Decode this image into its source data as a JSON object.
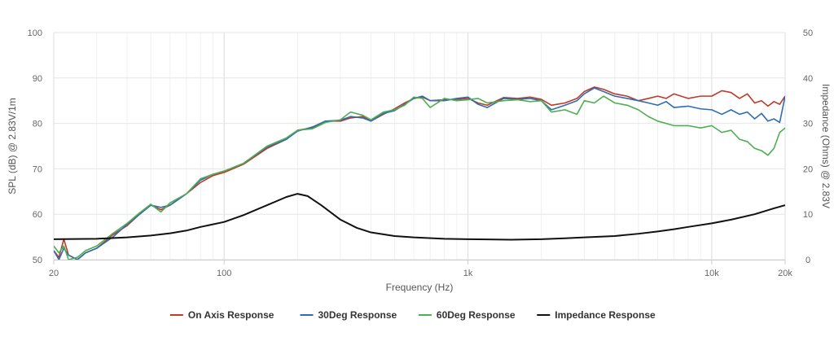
{
  "chart_data": {
    "type": "line",
    "xlabel": "Frequency (Hz)",
    "ylabel": "SPL (dB) @ 2.83V/1m",
    "y2label": "Impedance (Ohms) @ 2.83V",
    "x_scale": "log",
    "xlim": [
      20,
      20000
    ],
    "ylim": [
      50,
      100
    ],
    "y2lim": [
      0,
      50
    ],
    "x_ticks": [
      {
        "value": 20,
        "label": "20"
      },
      {
        "value": 100,
        "label": "100"
      },
      {
        "value": 1000,
        "label": "1k"
      },
      {
        "value": 10000,
        "label": "10k"
      },
      {
        "value": 20000,
        "label": "20k"
      }
    ],
    "y_ticks": [
      {
        "value": 50,
        "label": "50"
      },
      {
        "value": 60,
        "label": "60"
      },
      {
        "value": 70,
        "label": "70"
      },
      {
        "value": 80,
        "label": "80"
      },
      {
        "value": 90,
        "label": "90"
      },
      {
        "value": 100,
        "label": "100"
      }
    ],
    "y2_ticks": [
      {
        "value": 0,
        "label": "0"
      },
      {
        "value": 10,
        "label": "10"
      },
      {
        "value": 20,
        "label": "20"
      },
      {
        "value": 30,
        "label": "30"
      },
      {
        "value": 40,
        "label": "40"
      },
      {
        "value": 50,
        "label": "50"
      }
    ],
    "grid": true,
    "legend_position": "bottom",
    "series": [
      {
        "name": "On Axis Response",
        "color": "#c0392b",
        "axis": "left",
        "points": [
          [
            20,
            52
          ],
          [
            21,
            50.5
          ],
          [
            22,
            54.5
          ],
          [
            23,
            51
          ],
          [
            25,
            50
          ],
          [
            27,
            51.5
          ],
          [
            30,
            52.5
          ],
          [
            35,
            55.5
          ],
          [
            40,
            57.5
          ],
          [
            45,
            60
          ],
          [
            50,
            62
          ],
          [
            55,
            61
          ],
          [
            60,
            62
          ],
          [
            70,
            64.5
          ],
          [
            80,
            67
          ],
          [
            90,
            68.5
          ],
          [
            100,
            69.2
          ],
          [
            120,
            71
          ],
          [
            150,
            74.5
          ],
          [
            180,
            76.5
          ],
          [
            200,
            78.5
          ],
          [
            230,
            79
          ],
          [
            260,
            80.5
          ],
          [
            300,
            80.5
          ],
          [
            330,
            81.2
          ],
          [
            370,
            81.5
          ],
          [
            400,
            80.5
          ],
          [
            450,
            82
          ],
          [
            500,
            83.2
          ],
          [
            550,
            84.5
          ],
          [
            600,
            85.5
          ],
          [
            650,
            85.8
          ],
          [
            700,
            85
          ],
          [
            800,
            85.2
          ],
          [
            900,
            85.3
          ],
          [
            1000,
            85.5
          ],
          [
            1100,
            84.5
          ],
          [
            1200,
            84
          ],
          [
            1400,
            85.7
          ],
          [
            1600,
            85.5
          ],
          [
            1800,
            85.8
          ],
          [
            2000,
            85.3
          ],
          [
            2200,
            84
          ],
          [
            2500,
            84.5
          ],
          [
            2800,
            85.5
          ],
          [
            3000,
            87
          ],
          [
            3300,
            88
          ],
          [
            3600,
            87.5
          ],
          [
            4000,
            86.5
          ],
          [
            4500,
            86
          ],
          [
            5000,
            85
          ],
          [
            5500,
            85.5
          ],
          [
            6000,
            86
          ],
          [
            6500,
            85.5
          ],
          [
            7000,
            86.5
          ],
          [
            8000,
            85.5
          ],
          [
            9000,
            86
          ],
          [
            10000,
            86
          ],
          [
            11000,
            87.2
          ],
          [
            12000,
            86.8
          ],
          [
            13000,
            85.5
          ],
          [
            14000,
            86.5
          ],
          [
            15000,
            84.5
          ],
          [
            16000,
            85
          ],
          [
            17000,
            83.8
          ],
          [
            18000,
            84.8
          ],
          [
            19000,
            84.2
          ],
          [
            20000,
            86
          ]
        ]
      },
      {
        "name": "30Deg Response",
        "color": "#2e6db4",
        "axis": "left",
        "points": [
          [
            20,
            52
          ],
          [
            21,
            50
          ],
          [
            22,
            52.5
          ],
          [
            23,
            51
          ],
          [
            25,
            50
          ],
          [
            27,
            51.5
          ],
          [
            30,
            52.5
          ],
          [
            35,
            55
          ],
          [
            40,
            57.8
          ],
          [
            45,
            60
          ],
          [
            50,
            62
          ],
          [
            55,
            61.5
          ],
          [
            60,
            62
          ],
          [
            70,
            64.5
          ],
          [
            80,
            67.5
          ],
          [
            90,
            68.8
          ],
          [
            100,
            69.5
          ],
          [
            120,
            71.2
          ],
          [
            150,
            74.8
          ],
          [
            180,
            76.5
          ],
          [
            200,
            78.3
          ],
          [
            230,
            79.2
          ],
          [
            260,
            80.5
          ],
          [
            300,
            80.7
          ],
          [
            330,
            81.5
          ],
          [
            370,
            81.2
          ],
          [
            400,
            80.5
          ],
          [
            450,
            82.2
          ],
          [
            500,
            82.8
          ],
          [
            550,
            84.2
          ],
          [
            600,
            85.5
          ],
          [
            650,
            86
          ],
          [
            700,
            85
          ],
          [
            800,
            85
          ],
          [
            900,
            85.5
          ],
          [
            1000,
            85.8
          ],
          [
            1100,
            84.2
          ],
          [
            1200,
            83.5
          ],
          [
            1400,
            85.5
          ],
          [
            1600,
            85.3
          ],
          [
            1800,
            85.5
          ],
          [
            2000,
            85
          ],
          [
            2200,
            83
          ],
          [
            2500,
            84
          ],
          [
            2800,
            85
          ],
          [
            3000,
            86.5
          ],
          [
            3300,
            87.8
          ],
          [
            3600,
            87
          ],
          [
            4000,
            86
          ],
          [
            4500,
            85.5
          ],
          [
            5000,
            85
          ],
          [
            5500,
            84.5
          ],
          [
            6000,
            84
          ],
          [
            6500,
            84.8
          ],
          [
            7000,
            83.5
          ],
          [
            8000,
            83.8
          ],
          [
            9000,
            83.2
          ],
          [
            10000,
            83
          ],
          [
            11000,
            82
          ],
          [
            12000,
            83
          ],
          [
            13000,
            82
          ],
          [
            14000,
            82.5
          ],
          [
            15000,
            81
          ],
          [
            16000,
            82.2
          ],
          [
            17000,
            80.5
          ],
          [
            18000,
            81
          ],
          [
            19000,
            80.2
          ],
          [
            20000,
            86
          ]
        ]
      },
      {
        "name": "60Deg Response",
        "color": "#4caf50",
        "axis": "left",
        "points": [
          [
            20,
            53
          ],
          [
            21,
            51.5
          ],
          [
            22,
            53
          ],
          [
            23,
            50
          ],
          [
            25,
            50.5
          ],
          [
            27,
            52
          ],
          [
            30,
            53
          ],
          [
            35,
            55.8
          ],
          [
            40,
            58
          ],
          [
            45,
            60.3
          ],
          [
            50,
            62.2
          ],
          [
            55,
            60.5
          ],
          [
            60,
            62.5
          ],
          [
            70,
            64.5
          ],
          [
            80,
            67.8
          ],
          [
            90,
            68.8
          ],
          [
            100,
            69.5
          ],
          [
            120,
            71.2
          ],
          [
            150,
            75
          ],
          [
            180,
            76.8
          ],
          [
            200,
            78.5
          ],
          [
            230,
            78.8
          ],
          [
            260,
            80.2
          ],
          [
            300,
            80.8
          ],
          [
            330,
            82.5
          ],
          [
            370,
            81.8
          ],
          [
            400,
            80.8
          ],
          [
            450,
            82.5
          ],
          [
            500,
            83
          ],
          [
            550,
            84
          ],
          [
            600,
            85.8
          ],
          [
            650,
            85.5
          ],
          [
            700,
            83.5
          ],
          [
            800,
            85.5
          ],
          [
            900,
            85
          ],
          [
            1000,
            85.2
          ],
          [
            1100,
            85.5
          ],
          [
            1200,
            84.5
          ],
          [
            1400,
            85
          ],
          [
            1600,
            85.2
          ],
          [
            1800,
            84.8
          ],
          [
            2000,
            85
          ],
          [
            2200,
            82.5
          ],
          [
            2500,
            83
          ],
          [
            2800,
            82
          ],
          [
            3000,
            85
          ],
          [
            3300,
            84.5
          ],
          [
            3600,
            86
          ],
          [
            4000,
            84.5
          ],
          [
            4500,
            84
          ],
          [
            5000,
            83
          ],
          [
            5500,
            81.5
          ],
          [
            6000,
            80.5
          ],
          [
            6500,
            80
          ],
          [
            7000,
            79.5
          ],
          [
            8000,
            79.5
          ],
          [
            9000,
            79
          ],
          [
            10000,
            79.5
          ],
          [
            11000,
            78
          ],
          [
            12000,
            78.5
          ],
          [
            13000,
            76.5
          ],
          [
            14000,
            76
          ],
          [
            15000,
            74.5
          ],
          [
            16000,
            74
          ],
          [
            17000,
            73
          ],
          [
            18000,
            74.5
          ],
          [
            19000,
            78
          ],
          [
            20000,
            79
          ]
        ]
      },
      {
        "name": "Impedance Response",
        "color": "#111111",
        "axis": "right",
        "points": [
          [
            20,
            4.5
          ],
          [
            30,
            4.6
          ],
          [
            40,
            4.9
          ],
          [
            50,
            5.3
          ],
          [
            60,
            5.8
          ],
          [
            70,
            6.4
          ],
          [
            80,
            7.2
          ],
          [
            100,
            8.3
          ],
          [
            120,
            9.8
          ],
          [
            150,
            12
          ],
          [
            180,
            13.8
          ],
          [
            200,
            14.5
          ],
          [
            220,
            14
          ],
          [
            250,
            12
          ],
          [
            300,
            8.8
          ],
          [
            350,
            7
          ],
          [
            400,
            6
          ],
          [
            500,
            5.2
          ],
          [
            600,
            4.9
          ],
          [
            800,
            4.6
          ],
          [
            1000,
            4.5
          ],
          [
            1200,
            4.45
          ],
          [
            1500,
            4.4
          ],
          [
            2000,
            4.5
          ],
          [
            2500,
            4.7
          ],
          [
            3000,
            4.9
          ],
          [
            4000,
            5.2
          ],
          [
            5000,
            5.7
          ],
          [
            6000,
            6.2
          ],
          [
            7000,
            6.7
          ],
          [
            8000,
            7.2
          ],
          [
            10000,
            8
          ],
          [
            12000,
            8.8
          ],
          [
            15000,
            10
          ],
          [
            18000,
            11.3
          ],
          [
            20000,
            12
          ]
        ]
      }
    ]
  }
}
